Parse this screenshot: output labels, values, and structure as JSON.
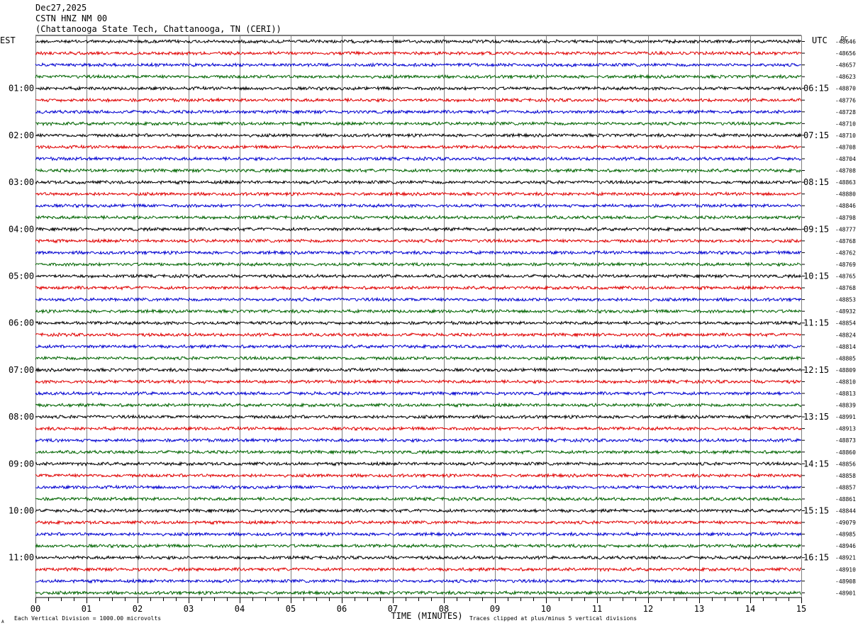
{
  "header": {
    "date": "Dec27,2025",
    "station": "CSTN HNZ NM 00",
    "location": "(Chattanooga State Tech, Chattanooga, TN (CERI))"
  },
  "left_tz": "EST",
  "right_tz": "UTC",
  "dc_label": "DC",
  "footer": {
    "scale_note": "Each Vertical Division = 1000.00 microvolts",
    "x_title": "TIME (MINUTES)",
    "clip_note": "Traces clipped at plus/minus 5 vertical divisions",
    "corner_mark": "A"
  },
  "colors": {
    "trace_cycle": [
      "#000000",
      "#e00000",
      "#0000d0",
      "#006400"
    ],
    "grid": "#808080",
    "text": "#000000"
  },
  "chart_data": {
    "type": "line",
    "subtype": "helicorder",
    "x_range": [
      0,
      15
    ],
    "x_ticks": [
      "00",
      "01",
      "02",
      "03",
      "04",
      "05",
      "06",
      "07",
      "08",
      "09",
      "10",
      "11",
      "12",
      "13",
      "14",
      "15"
    ],
    "x_minor_ticks_per_major": 4,
    "rows_per_hour": 4,
    "grid": true,
    "left_hour_labels": [
      "01:00",
      "02:00",
      "03:00",
      "04:00",
      "05:00",
      "06:00",
      "07:00",
      "08:00",
      "09:00",
      "10:00",
      "11:00"
    ],
    "right_hour_labels": [
      "06:15",
      "07:15",
      "08:15",
      "09:15",
      "10:15",
      "11:15",
      "12:15",
      "13:15",
      "14:15",
      "15:15",
      "16:15"
    ],
    "row_dc_offsets": [
      "-48646",
      "-48656",
      "-48657",
      "-48623",
      "-48870",
      "-48776",
      "-48728",
      "-48710",
      "-48710",
      "-48708",
      "-48704",
      "-48708",
      "-48863",
      "-48880",
      "-48846",
      "-48798",
      "-48777",
      "-48768",
      "-48762",
      "-48769",
      "-48765",
      "-48768",
      "-48853",
      "-48932",
      "-48854",
      "-48824",
      "-48814",
      "-48805",
      "-48809",
      "-48810",
      "-48813",
      "-48839",
      "-48991",
      "-48913",
      "-48873",
      "-48860",
      "-48856",
      "-48858",
      "-48857",
      "-48861",
      "-48844",
      "-49079",
      "-48985",
      "-48946",
      "-48921",
      "-48910",
      "-48908",
      "-48901"
    ]
  }
}
